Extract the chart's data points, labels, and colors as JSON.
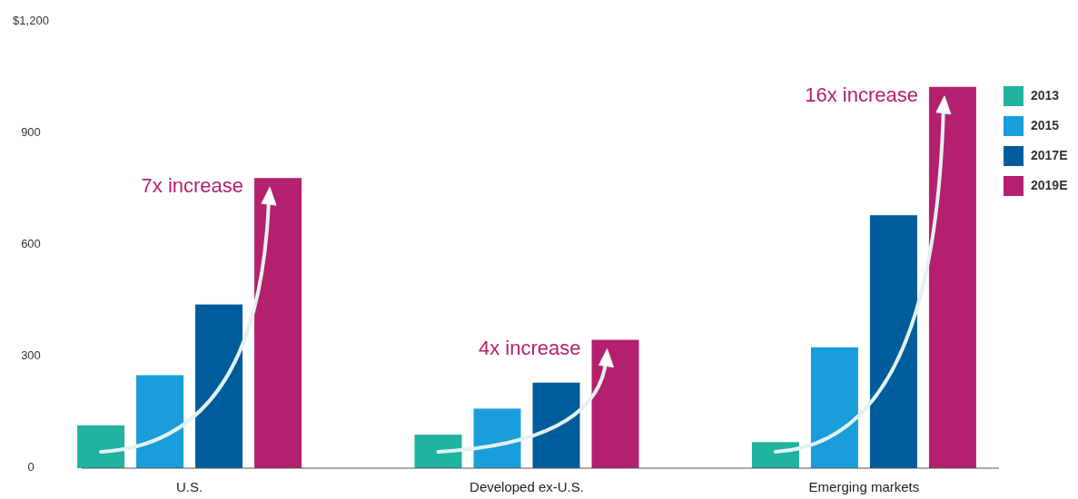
{
  "chart_data": {
    "type": "bar",
    "categories": [
      "U.S.",
      "Developed ex-U.S.",
      "Emerging markets"
    ],
    "series": [
      {
        "name": "2013",
        "color": "#1fb3a0",
        "values": [
          115,
          90,
          70
        ]
      },
      {
        "name": "2015",
        "color": "#1a9ddb",
        "values": [
          250,
          160,
          325
        ]
      },
      {
        "name": "2017E",
        "color": "#005d9c",
        "values": [
          440,
          230,
          680
        ]
      },
      {
        "name": "2019E",
        "color": "#b5206e",
        "values": [
          780,
          345,
          1025
        ]
      }
    ],
    "ylim": [
      0,
      1200
    ],
    "yticks": [
      0,
      300,
      600,
      900,
      {
        "value": 1200,
        "label": "$1,200"
      }
    ],
    "grid": false,
    "legend": "right",
    "annotations": [
      "7x increase",
      "4x increase",
      "16x increase"
    ]
  }
}
